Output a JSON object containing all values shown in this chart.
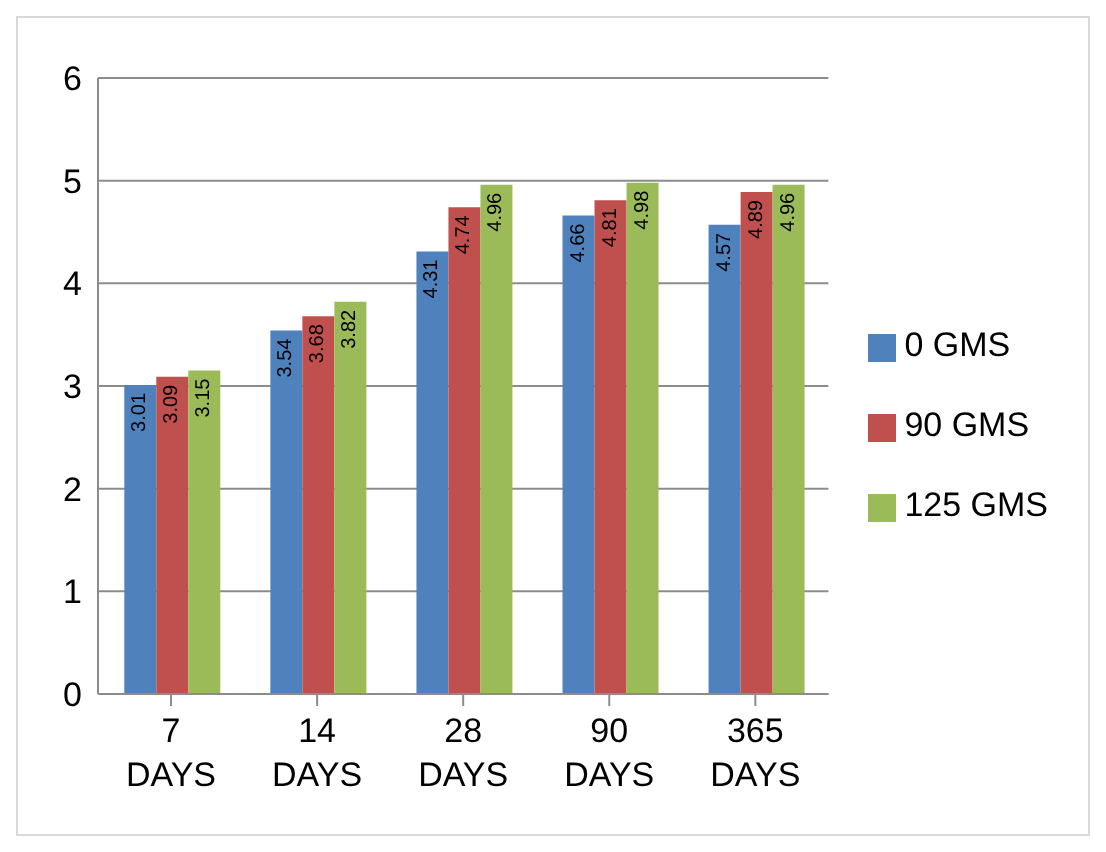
{
  "chart_data": {
    "type": "bar",
    "categories": [
      "7 DAYS",
      "14 DAYS",
      "28 DAYS",
      "90 DAYS",
      "365 DAYS"
    ],
    "series": [
      {
        "name": "0 GMS",
        "color": "#4f81bd",
        "values": [
          3.01,
          3.54,
          4.31,
          4.66,
          4.57
        ]
      },
      {
        "name": "90 GMS",
        "color": "#c0504d",
        "values": [
          3.09,
          3.68,
          4.74,
          4.81,
          4.89
        ]
      },
      {
        "name": "125 GMS",
        "color": "#9bbb59",
        "values": [
          3.15,
          3.82,
          4.96,
          4.98,
          4.96
        ]
      }
    ],
    "ylim": [
      0,
      6
    ],
    "yticks": [
      0,
      1,
      2,
      3,
      4,
      5,
      6
    ],
    "grid": "y",
    "legend": "right",
    "data_labels": true
  }
}
